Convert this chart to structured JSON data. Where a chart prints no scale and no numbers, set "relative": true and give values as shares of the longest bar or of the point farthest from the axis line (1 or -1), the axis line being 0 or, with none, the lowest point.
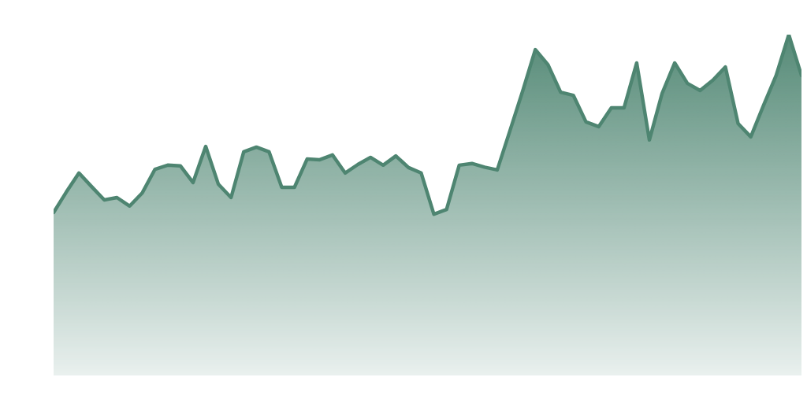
{
  "chart_data": {
    "type": "area",
    "relative": true,
    "categories": [
      null,
      null,
      null,
      null,
      null,
      null,
      null,
      null,
      null,
      null,
      null,
      null,
      null,
      null,
      null,
      null,
      null,
      null,
      null,
      null,
      null,
      null,
      null,
      null,
      null,
      null,
      null,
      null,
      null,
      null,
      null,
      null,
      null,
      null,
      null,
      null,
      null,
      null,
      null,
      null,
      null,
      null,
      null,
      null,
      null,
      null,
      null,
      null,
      null,
      null,
      null,
      null,
      null,
      null,
      null,
      null,
      null,
      null,
      null,
      null
    ],
    "values": [
      0.478,
      0.538,
      0.594,
      0.554,
      0.515,
      0.522,
      0.497,
      0.536,
      0.605,
      0.617,
      0.615,
      0.566,
      0.672,
      0.561,
      0.522,
      0.656,
      0.67,
      0.656,
      0.552,
      0.552,
      0.635,
      0.633,
      0.647,
      0.594,
      0.619,
      0.64,
      0.617,
      0.644,
      0.61,
      0.594,
      0.473,
      0.487,
      0.617,
      0.622,
      0.611,
      0.603,
      0.718,
      0.834,
      0.956,
      0.912,
      0.831,
      0.822,
      0.744,
      0.73,
      0.785,
      0.785,
      0.917,
      0.691,
      0.827,
      0.917,
      0.857,
      0.836,
      0.866,
      0.905,
      0.739,
      0.7,
      0.792,
      0.88,
      1.0,
      0.88
    ],
    "color": "#4e8571"
  }
}
